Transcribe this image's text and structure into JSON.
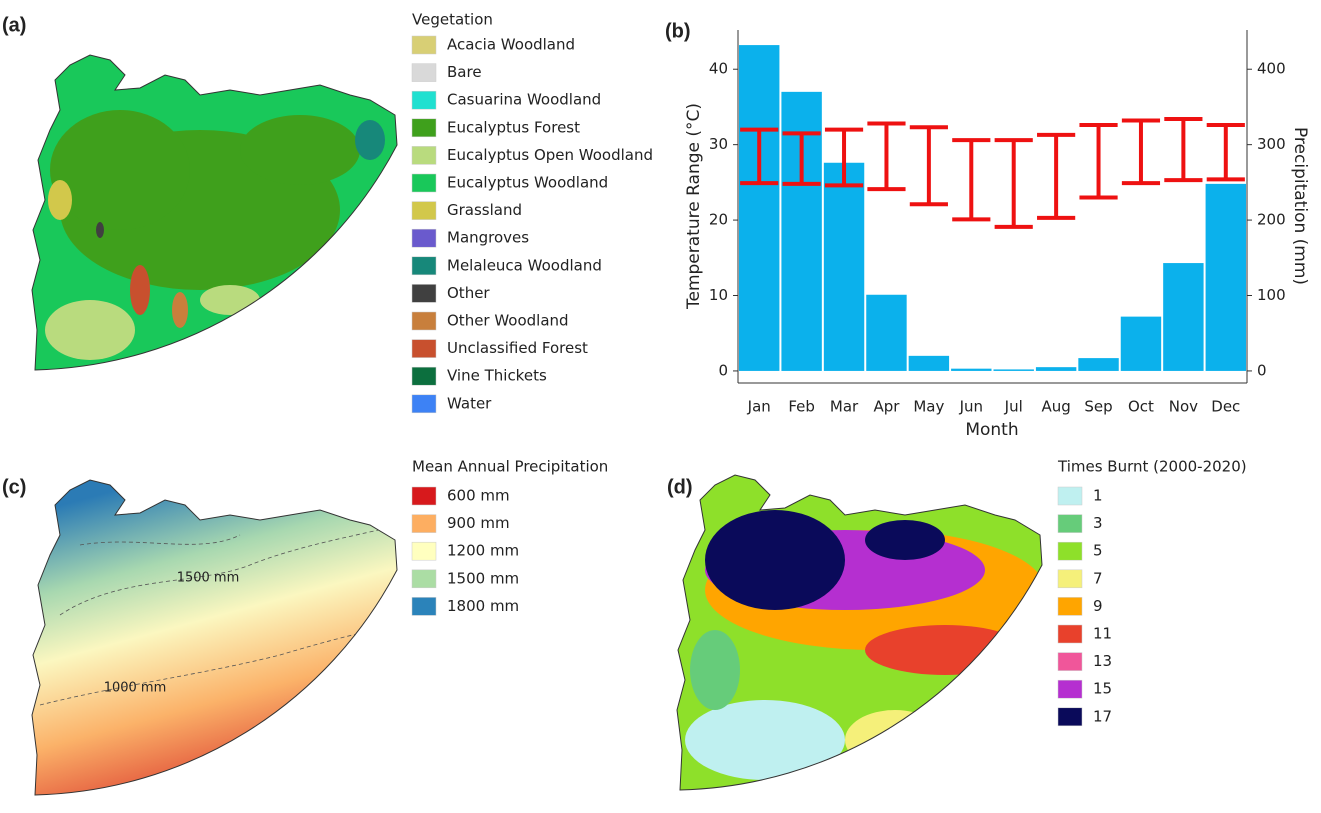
{
  "panel_labels": [
    "(a)",
    "(b)",
    "(c)",
    "(d)"
  ],
  "vegetation_legend": {
    "title": "Vegetation",
    "items": [
      {
        "name": "Acacia Woodland",
        "color": "#d8cf75"
      },
      {
        "name": "Bare",
        "color": "#d9d9d9"
      },
      {
        "name": "Casuarina Woodland",
        "color": "#20e0d0"
      },
      {
        "name": "Eucalyptus Forest",
        "color": "#3fa01c"
      },
      {
        "name": "Eucalyptus Open Woodland",
        "color": "#b9db7e"
      },
      {
        "name": "Eucalyptus Woodland",
        "color": "#19c85a"
      },
      {
        "name": "Grassland",
        "color": "#d2c84b"
      },
      {
        "name": "Mangroves",
        "color": "#6a5acd"
      },
      {
        "name": "Melaleuca Woodland",
        "color": "#17887a"
      },
      {
        "name": "Other",
        "color": "#404040"
      },
      {
        "name": "Other Woodland",
        "color": "#c87f3c"
      },
      {
        "name": "Unclassified Forest",
        "color": "#c8502e"
      },
      {
        "name": "Vine Thickets",
        "color": "#0c6f3e"
      },
      {
        "name": "Water",
        "color": "#3d82f5"
      }
    ]
  },
  "chart_data": {
    "type": "bar",
    "categories": [
      "Jan",
      "Feb",
      "Mar",
      "Apr",
      "May",
      "Jun",
      "Jul",
      "Aug",
      "Sep",
      "Oct",
      "Nov",
      "Dec"
    ],
    "x_label": "Month",
    "y_label": "Temperature Range (°C)",
    "y2_label": "Precipitation (mm)",
    "ylim": [
      -1.6,
      45.2
    ],
    "yticks": [
      0,
      10,
      20,
      30,
      40
    ],
    "y2lim": [
      -16,
      452
    ],
    "y2ticks": [
      0,
      100,
      200,
      300,
      400
    ],
    "series": [
      {
        "axis": "y2",
        "color": "#0bb1ec",
        "values": [
          432,
          370,
          276,
          101,
          20,
          3,
          2,
          5,
          17,
          72,
          143,
          248
        ]
      },
      {
        "type": "errorbar",
        "color": "#ee1111",
        "low": [
          24.9,
          24.8,
          24.6,
          24.1,
          22.1,
          20.1,
          19.1,
          20.3,
          23.0,
          24.9,
          25.3,
          25.4
        ],
        "high": [
          32.0,
          31.5,
          32.0,
          32.8,
          32.3,
          30.6,
          30.6,
          31.3,
          32.6,
          33.2,
          33.4,
          32.6
        ]
      }
    ]
  },
  "precipitation_legend": {
    "title": "Mean Annual Precipitation",
    "items": [
      {
        "name": "600 mm",
        "color": "#d7191c"
      },
      {
        "name": "900 mm",
        "color": "#fdae61"
      },
      {
        "name": "1200 mm",
        "color": "#ffffbf"
      },
      {
        "name": "1500 mm",
        "color": "#abdda4"
      },
      {
        "name": "1800 mm",
        "color": "#2b83ba"
      }
    ]
  },
  "contour_labels": [
    "1500 mm",
    "1000 mm"
  ],
  "burn_legend": {
    "title": "Times Burnt (2000-2020)",
    "items": [
      {
        "name": "1",
        "color": "#bff0f0"
      },
      {
        "name": "3",
        "color": "#66cc7a"
      },
      {
        "name": "5",
        "color": "#8ee02a"
      },
      {
        "name": "7",
        "color": "#f5f07a"
      },
      {
        "name": "9",
        "color": "#ffa500"
      },
      {
        "name": "11",
        "color": "#e8412c"
      },
      {
        "name": "13",
        "color": "#f0569a"
      },
      {
        "name": "15",
        "color": "#b52fd0"
      },
      {
        "name": "17",
        "color": "#0a0a5a"
      }
    ]
  }
}
